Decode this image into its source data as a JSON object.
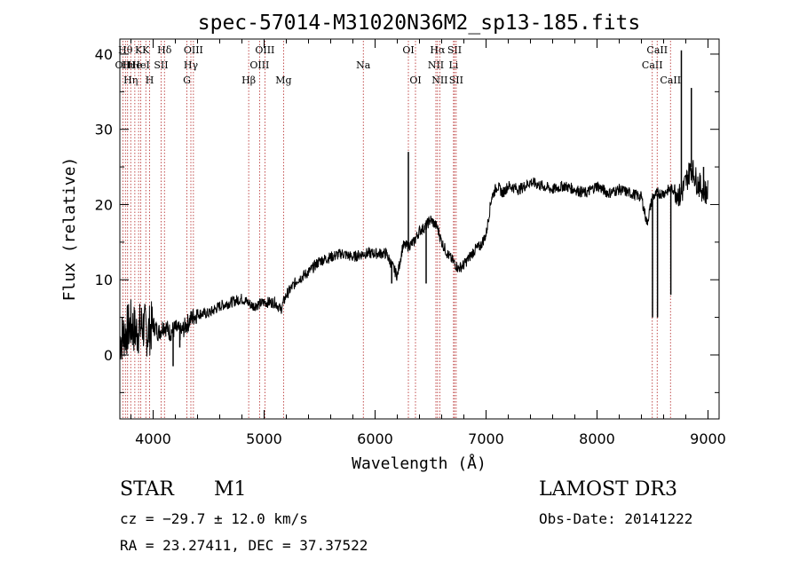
{
  "chart_data": {
    "type": "line",
    "title": "spec-57014-M31020N36M2_sp13-185.fits",
    "xlabel": "Wavelength (Å)",
    "ylabel": "Flux (relative)",
    "xlim": [
      3700,
      9100
    ],
    "ylim": [
      -8.5,
      42
    ],
    "x_ticks": [
      4000,
      5000,
      6000,
      7000,
      8000,
      9000
    ],
    "y_ticks": [
      0,
      10,
      20,
      30,
      40
    ],
    "x_tick_labels": [
      "4000",
      "5000",
      "6000",
      "7000",
      "8000",
      "9000"
    ],
    "y_tick_labels": [
      "0",
      "10",
      "20",
      "30",
      "40"
    ],
    "series": [
      {
        "name": "flux",
        "x": [
          3700,
          3750,
          3800,
          3850,
          3900,
          3950,
          4000,
          4050,
          4100,
          4150,
          4200,
          4250,
          4300,
          4350,
          4400,
          4500,
          4600,
          4700,
          4800,
          4850,
          4900,
          5000,
          5100,
          5150,
          5200,
          5300,
          5400,
          5500,
          5600,
          5700,
          5800,
          5900,
          6000,
          6100,
          6150,
          6200,
          6250,
          6300,
          6350,
          6400,
          6450,
          6500,
          6560,
          6600,
          6650,
          6700,
          6750,
          6800,
          6850,
          6900,
          6950,
          7000,
          7050,
          7100,
          7150,
          7200,
          7300,
          7400,
          7500,
          7600,
          7700,
          7800,
          7900,
          8000,
          8100,
          8200,
          8300,
          8400,
          8450,
          8500,
          8550,
          8600,
          8650,
          8700,
          8750,
          8800,
          8850,
          8900,
          8950,
          9000
        ],
        "y": [
          2,
          3,
          4,
          3,
          4,
          3,
          4,
          3,
          4,
          3,
          3.5,
          3,
          4,
          5,
          5.5,
          5.5,
          6.5,
          7,
          7.5,
          7,
          6.5,
          7,
          7,
          6,
          8,
          10,
          11,
          12.5,
          13,
          13.5,
          13,
          13.5,
          13.5,
          13.5,
          12,
          10.5,
          14.5,
          14.5,
          15,
          16.5,
          17,
          18,
          17,
          15,
          13.5,
          12.5,
          11.5,
          12,
          13,
          14,
          14.5,
          16,
          21,
          22.5,
          21.5,
          22.5,
          22,
          23,
          22.5,
          22,
          22.5,
          22,
          21.5,
          22.5,
          21.5,
          22,
          21.5,
          21,
          17.5,
          21,
          21.5,
          21.5,
          22,
          22,
          21,
          23,
          25,
          23,
          22,
          21.5
        ]
      }
    ],
    "absorption_spikes": [
      {
        "x": 4180,
        "y": -1.5
      },
      {
        "x": 4240,
        "y": 1.0
      },
      {
        "x": 6150,
        "y": 9.5
      },
      {
        "x": 6460,
        "y": 9.5
      },
      {
        "x": 8500,
        "y": 5.0
      },
      {
        "x": 8545,
        "y": 5.0
      },
      {
        "x": 8665,
        "y": 8.0
      }
    ],
    "emission_spikes": [
      {
        "x": 6300,
        "y": 27.0
      },
      {
        "x": 8760,
        "y": 40.5
      },
      {
        "x": 8850,
        "y": 35.5
      },
      {
        "x": 8960,
        "y": 25.0
      }
    ],
    "line_markers": [
      {
        "x": 3727,
        "label": "OII",
        "row": 1
      },
      {
        "x": 3750,
        "label": "Hθ",
        "row": 0
      },
      {
        "x": 3770,
        "label": "Hι",
        "row": 1
      },
      {
        "x": 3798,
        "label": "Hη",
        "row": 2
      },
      {
        "x": 3835,
        "label": "He",
        "row": 1
      },
      {
        "x": 3869,
        "label": "K",
        "row": 0
      },
      {
        "x": 3889,
        "label": "HeI",
        "row": 1
      },
      {
        "x": 3934,
        "label": "K",
        "row": 0
      },
      {
        "x": 3968,
        "label": "H",
        "row": 2
      },
      {
        "x": 4072,
        "label": "SII",
        "row": 1
      },
      {
        "x": 4102,
        "label": "Hδ",
        "row": 0
      },
      {
        "x": 4304,
        "label": "G",
        "row": 2
      },
      {
        "x": 4340,
        "label": "Hγ",
        "row": 1
      },
      {
        "x": 4363,
        "label": "OIII",
        "row": 0
      },
      {
        "x": 4861,
        "label": "Hβ",
        "row": 2
      },
      {
        "x": 4959,
        "label": "OIII",
        "row": 1
      },
      {
        "x": 5007,
        "label": "OIII",
        "row": 0
      },
      {
        "x": 5175,
        "label": "Mg",
        "row": 2
      },
      {
        "x": 5894,
        "label": "Na",
        "row": 1
      },
      {
        "x": 6300,
        "label": "OI",
        "row": 0
      },
      {
        "x": 6364,
        "label": "OI",
        "row": 2
      },
      {
        "x": 6548,
        "label": "NII",
        "row": 1
      },
      {
        "x": 6563,
        "label": "Hα",
        "row": 0
      },
      {
        "x": 6583,
        "label": "NII",
        "row": 2
      },
      {
        "x": 6707,
        "label": "Li",
        "row": 1
      },
      {
        "x": 6716,
        "label": "SII",
        "row": 0
      },
      {
        "x": 6731,
        "label": "SII",
        "row": 2
      },
      {
        "x": 8498,
        "label": "CaII",
        "row": 1
      },
      {
        "x": 8542,
        "label": "CaII",
        "row": 0
      },
      {
        "x": 8662,
        "label": "CaII",
        "row": 2
      }
    ]
  },
  "info": {
    "object_class": "STAR",
    "subclass": "M1",
    "survey": "LAMOST DR3",
    "cz": "cz = −29.7 ± 12.0 km/s",
    "obs_date": "Obs-Date: 20141222",
    "coords": "RA =  23.27411, DEC =  37.37522"
  },
  "colors": {
    "spectrum": "#000000",
    "marker_line": "#b22222",
    "axis": "#000000",
    "background": "#ffffff"
  }
}
